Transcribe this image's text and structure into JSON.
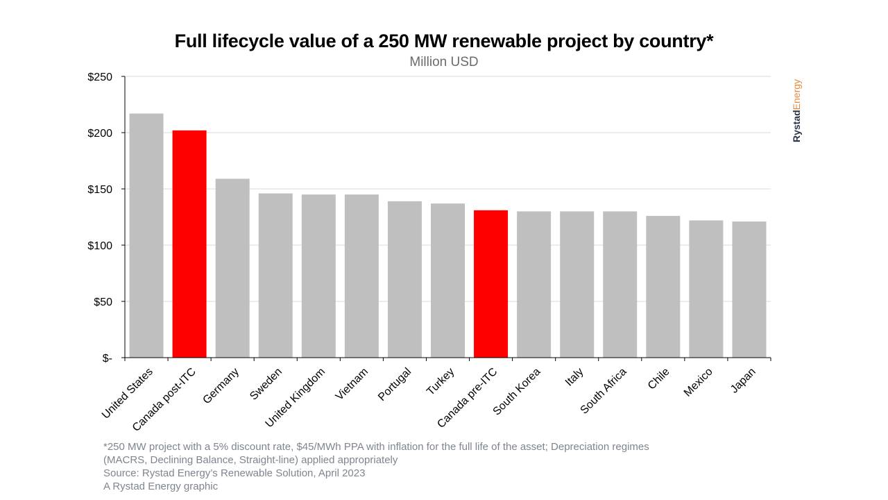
{
  "chart_data": {
    "type": "bar",
    "title": "Full lifecycle value of a 250 MW renewable project by country*",
    "subtitle": "Million USD",
    "categories": [
      "United States",
      "Canada post-ITC",
      "Germany",
      "Sweden",
      "United Kingdom",
      "Vietnam",
      "Portugal",
      "Turkey",
      "Canada pre-ITC",
      "South Korea",
      "Italy",
      "South Africa",
      "Chile",
      "Mexico",
      "Japan"
    ],
    "values": [
      217,
      202,
      159,
      146,
      145,
      145,
      139,
      137,
      131,
      130,
      130,
      130,
      126,
      122,
      121
    ],
    "highlighted": [
      "Canada post-ITC",
      "Canada pre-ITC"
    ],
    "ylim": [
      0,
      250
    ],
    "yticks": [
      {
        "value": 0,
        "label": "$-"
      },
      {
        "value": 50,
        "label": "$50"
      },
      {
        "value": 100,
        "label": "$100"
      },
      {
        "value": 150,
        "label": "$150"
      },
      {
        "value": 200,
        "label": "$200"
      },
      {
        "value": 250,
        "label": "$250"
      }
    ],
    "grid": true,
    "colors": {
      "default_bar": "#bfbfbf",
      "highlight_bar": "#ff0000",
      "grid": "#d9d9d9",
      "axis": "#000000"
    }
  },
  "logo": {
    "part1": "Rystad",
    "part2": "Energy"
  },
  "footnotes": [
    "*250 MW project with a 5% discount rate, $45/MWh PPA  with inflation for the full life of the asset; Depreciation regimes",
    "(MACRS, Declining Balance, Straight-line) applied appropriately",
    "Source: Rystad Energy’s Renewable Solution, April 2023",
    "A Rystad Energy graphic"
  ]
}
